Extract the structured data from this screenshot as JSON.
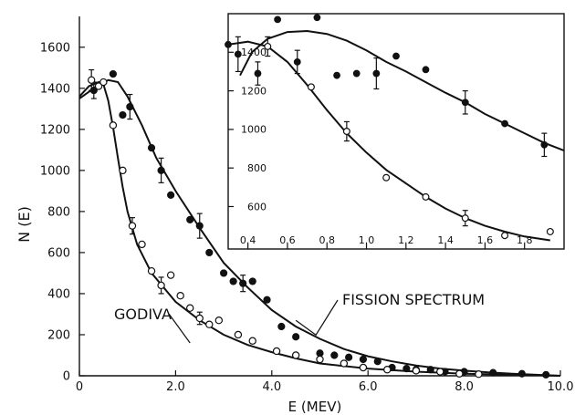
{
  "chart_data": [
    {
      "type": "scatter",
      "xlabel": "E (MEV)",
      "ylabel": "N (E)",
      "xlim": [
        0,
        10
      ],
      "ylim": [
        0,
        1750
      ],
      "xticks": [
        "0",
        "2.0",
        "4.0",
        "6.0",
        "8.0",
        "10.0"
      ],
      "xtick_values": [
        0,
        2,
        4,
        6,
        8,
        10
      ],
      "yticks": [
        "0",
        "200",
        "400",
        "600",
        "800",
        "1000",
        "1200",
        "1400",
        "1600"
      ],
      "ytick_values": [
        0,
        200,
        400,
        600,
        800,
        1000,
        1200,
        1400,
        1600
      ],
      "grid": false,
      "annotations": [
        {
          "text": "FISSION SPECTRUM",
          "series": "filled"
        },
        {
          "text": "GODIVA",
          "series": "open"
        }
      ],
      "series": [
        {
          "marker": "filled",
          "points": [
            [
              0.3,
              1390
            ],
            [
              0.7,
              1470
            ],
            [
              0.9,
              1270
            ],
            [
              1.05,
              1310
            ],
            [
              1.5,
              1110
            ],
            [
              1.7,
              1000
            ],
            [
              1.9,
              880
            ],
            [
              2.3,
              760
            ],
            [
              2.5,
              730
            ],
            [
              2.7,
              600
            ],
            [
              3.0,
              500
            ],
            [
              3.2,
              460
            ],
            [
              3.4,
              450
            ],
            [
              3.6,
              460
            ],
            [
              3.9,
              370
            ],
            [
              4.2,
              240
            ],
            [
              4.5,
              190
            ],
            [
              5.0,
              110
            ],
            [
              5.3,
              100
            ],
            [
              5.6,
              90
            ],
            [
              5.9,
              80
            ],
            [
              6.2,
              70
            ],
            [
              6.5,
              40
            ],
            [
              6.8,
              35
            ],
            [
              7.0,
              30
            ],
            [
              7.3,
              30
            ],
            [
              7.6,
              20
            ],
            [
              8.0,
              20
            ],
            [
              8.6,
              15
            ],
            [
              9.2,
              10
            ],
            [
              9.7,
              5
            ]
          ],
          "error_bars": [
            [
              1.05,
              60
            ],
            [
              1.7,
              60
            ],
            [
              2.5,
              60
            ],
            [
              3.4,
              40
            ],
            [
              0.3,
              40
            ]
          ]
        },
        {
          "marker": "open",
          "points": [
            [
              0.25,
              1440
            ],
            [
              0.4,
              1410
            ],
            [
              0.5,
              1430
            ],
            [
              0.7,
              1220
            ],
            [
              0.9,
              1000
            ],
            [
              1.1,
              730
            ],
            [
              1.3,
              640
            ],
            [
              1.5,
              510
            ],
            [
              1.7,
              440
            ],
            [
              1.9,
              490
            ],
            [
              2.1,
              390
            ],
            [
              2.3,
              330
            ],
            [
              2.5,
              280
            ],
            [
              2.7,
              250
            ],
            [
              2.9,
              270
            ],
            [
              3.3,
              200
            ],
            [
              3.6,
              170
            ],
            [
              4.1,
              120
            ],
            [
              4.5,
              100
            ],
            [
              5.0,
              80
            ],
            [
              5.5,
              60
            ],
            [
              5.9,
              40
            ],
            [
              6.4,
              30
            ],
            [
              7.0,
              25
            ],
            [
              7.5,
              20
            ],
            [
              7.9,
              10
            ],
            [
              8.3,
              8
            ]
          ],
          "error_bars": [
            [
              0.25,
              50
            ],
            [
              1.1,
              40
            ],
            [
              1.7,
              40
            ],
            [
              2.5,
              30
            ]
          ]
        }
      ],
      "curves": [
        {
          "name": "FISSION SPECTRUM",
          "points": [
            [
              0,
              1350
            ],
            [
              0.3,
              1400
            ],
            [
              0.6,
              1440
            ],
            [
              0.8,
              1430
            ],
            [
              1.0,
              1360
            ],
            [
              1.3,
              1220
            ],
            [
              1.6,
              1060
            ],
            [
              2.0,
              900
            ],
            [
              2.5,
              720
            ],
            [
              3.0,
              550
            ],
            [
              3.5,
              430
            ],
            [
              4.0,
              320
            ],
            [
              4.5,
              240
            ],
            [
              5.0,
              180
            ],
            [
              5.5,
              130
            ],
            [
              6.0,
              95
            ],
            [
              6.5,
              70
            ],
            [
              7.0,
              50
            ],
            [
              7.5,
              35
            ],
            [
              8.0,
              25
            ],
            [
              8.5,
              17
            ],
            [
              9.0,
              10
            ],
            [
              10.0,
              0
            ]
          ]
        },
        {
          "name": "GODIVA",
          "points": [
            [
              0,
              1360
            ],
            [
              0.2,
              1410
            ],
            [
              0.4,
              1430
            ],
            [
              0.5,
              1420
            ],
            [
              0.6,
              1340
            ],
            [
              0.7,
              1210
            ],
            [
              0.8,
              1060
            ],
            [
              0.9,
              920
            ],
            [
              1.0,
              800
            ],
            [
              1.2,
              640
            ],
            [
              1.5,
              500
            ],
            [
              2.0,
              360
            ],
            [
              2.5,
              270
            ],
            [
              3.0,
              200
            ],
            [
              3.5,
              150
            ],
            [
              4.0,
              115
            ],
            [
              4.5,
              85
            ],
            [
              5.0,
              60
            ],
            [
              6.0,
              35
            ],
            [
              7.0,
              20
            ],
            [
              8.0,
              10
            ],
            [
              10.0,
              0
            ]
          ]
        }
      ]
    },
    {
      "type": "scatter",
      "inset": true,
      "xlim": [
        0.3,
        2.0
      ],
      "ylim": [
        380,
        1600
      ],
      "xticks": [
        "0.4",
        "0.6",
        "0.8",
        "1.0",
        "1.2",
        "1.4",
        "1.6",
        "1.8"
      ],
      "xtick_values": [
        0.4,
        0.6,
        0.8,
        1.0,
        1.2,
        1.4,
        1.6,
        1.8
      ],
      "yticks": [
        "600",
        "800",
        "1000",
        "1200",
        "1400"
      ],
      "ytick_values": [
        600,
        800,
        1000,
        1200,
        1400
      ],
      "series": [
        {
          "marker": "filled",
          "points": [
            [
              0.3,
              1440
            ],
            [
              0.35,
              1390
            ],
            [
              0.45,
              1290
            ],
            [
              0.55,
              1570
            ],
            [
              0.65,
              1350
            ],
            [
              0.75,
              1580
            ],
            [
              0.85,
              1280
            ],
            [
              0.95,
              1290
            ],
            [
              1.05,
              1290
            ],
            [
              1.15,
              1380
            ],
            [
              1.3,
              1310
            ],
            [
              1.5,
              1140
            ],
            [
              1.7,
              1030
            ],
            [
              1.9,
              920
            ]
          ],
          "error_bars": [
            [
              0.35,
              90
            ],
            [
              0.45,
              60
            ],
            [
              0.65,
              60
            ],
            [
              1.05,
              80
            ],
            [
              1.5,
              60
            ],
            [
              1.9,
              60
            ]
          ]
        },
        {
          "marker": "open",
          "points": [
            [
              0.5,
              1430
            ],
            [
              0.72,
              1220
            ],
            [
              0.9,
              990
            ],
            [
              1.1,
              750
            ],
            [
              1.3,
              650
            ],
            [
              1.5,
              540
            ],
            [
              1.7,
              450
            ],
            [
              1.93,
              470
            ]
          ],
          "error_bars": [
            [
              0.5,
              50
            ],
            [
              0.9,
              50
            ],
            [
              1.5,
              40
            ]
          ]
        }
      ],
      "curves": [
        {
          "name": "fission",
          "points": [
            [
              0.36,
              1280
            ],
            [
              0.42,
              1400
            ],
            [
              0.5,
              1470
            ],
            [
              0.6,
              1505
            ],
            [
              0.7,
              1510
            ],
            [
              0.8,
              1495
            ],
            [
              0.9,
              1460
            ],
            [
              1.0,
              1410
            ],
            [
              1.1,
              1350
            ],
            [
              1.2,
              1300
            ],
            [
              1.3,
              1245
            ],
            [
              1.4,
              1190
            ],
            [
              1.5,
              1140
            ],
            [
              1.6,
              1080
            ],
            [
              1.7,
              1030
            ],
            [
              1.8,
              980
            ],
            [
              1.9,
              930
            ],
            [
              2.0,
              890
            ]
          ]
        },
        {
          "name": "godiva",
          "points": [
            [
              0.3,
              1440
            ],
            [
              0.4,
              1455
            ],
            [
              0.5,
              1430
            ],
            [
              0.6,
              1350
            ],
            [
              0.7,
              1230
            ],
            [
              0.8,
              1100
            ],
            [
              0.9,
              980
            ],
            [
              1.0,
              880
            ],
            [
              1.1,
              790
            ],
            [
              1.2,
              720
            ],
            [
              1.3,
              650
            ],
            [
              1.4,
              590
            ],
            [
              1.5,
              540
            ],
            [
              1.6,
              500
            ],
            [
              1.7,
              470
            ],
            [
              1.8,
              445
            ],
            [
              1.93,
              425
            ]
          ]
        }
      ]
    }
  ]
}
